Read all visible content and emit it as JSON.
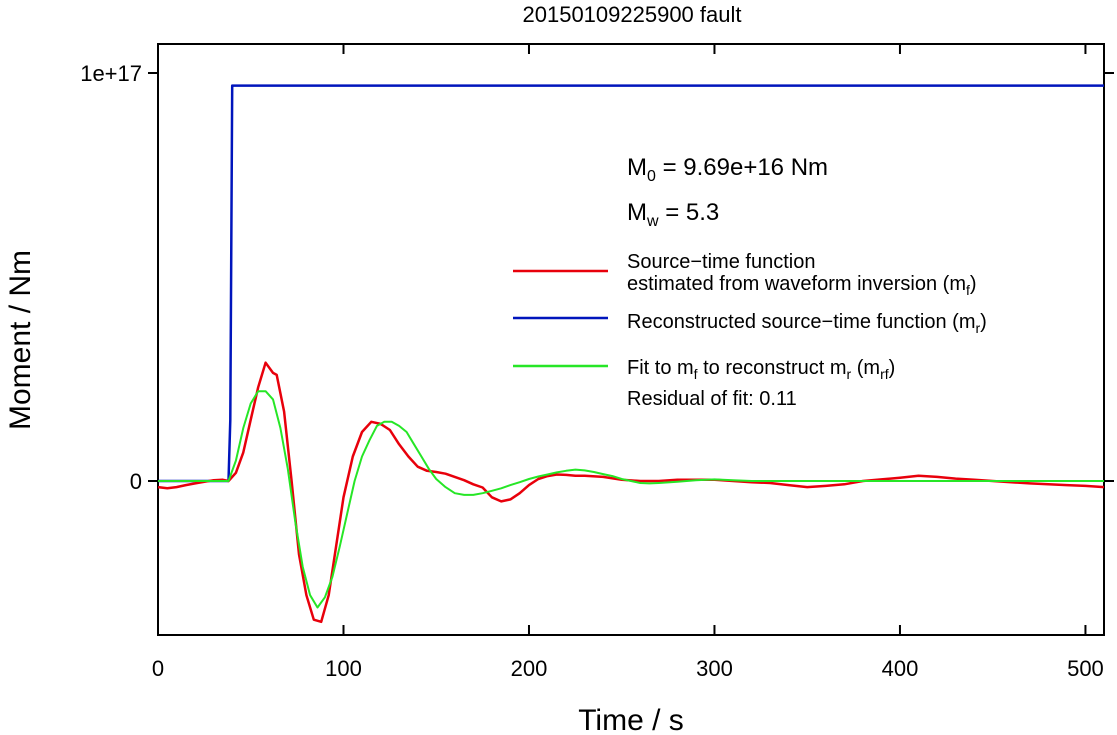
{
  "chart_data": {
    "type": "line",
    "title": "20150109225900 fault",
    "xlabel": "Time / s",
    "ylabel": "Moment / Nm",
    "xlim": [
      0,
      510
    ],
    "ylim": [
      -3.8e+16,
      1.14e+17
    ],
    "x_ticks": [
      {
        "value": 0,
        "label": "0"
      },
      {
        "value": 100,
        "label": "100"
      },
      {
        "value": 200,
        "label": "200"
      },
      {
        "value": 300,
        "label": "300"
      },
      {
        "value": 400,
        "label": "400"
      },
      {
        "value": 500,
        "label": "500"
      }
    ],
    "y_ticks": [
      {
        "value": 0,
        "label": "0"
      },
      {
        "value": 1e+17,
        "label": "1e+17"
      }
    ],
    "annotations": {
      "m0_sym": "M",
      "m0_sub": "0",
      "m0_text": " = 9.69e+16 Nm",
      "mw_sym": "M",
      "mw_sub": "w",
      "mw_text": " = 5.3",
      "residual": "Residual of fit: 0.11"
    },
    "legend": {
      "placement": "right",
      "entries": [
        {
          "color": "#e8000b",
          "lines": [
            [
              {
                "t": "Source−time function"
              }
            ],
            [
              {
                "t": "estimated from waveform inversion (m"
              },
              {
                "t": "f",
                "sub": true
              },
              {
                "t": ")"
              }
            ]
          ]
        },
        {
          "color": "#0015bc",
          "lines": [
            [
              {
                "t": "Reconstructed source−time function (m"
              },
              {
                "t": "r",
                "sub": true
              },
              {
                "t": ")"
              }
            ]
          ]
        },
        {
          "color": "#26e626",
          "lines": [
            [
              {
                "t": "Fit to m"
              },
              {
                "t": "f",
                "sub": true
              },
              {
                "t": " to reconstruct m"
              },
              {
                "t": "r",
                "sub": true
              },
              {
                "t": " (m"
              },
              {
                "t": "rf",
                "sub": true
              },
              {
                "t": ")"
              }
            ]
          ]
        }
      ]
    },
    "series": [
      {
        "color": "#0015bc",
        "x": [
          0,
          38,
          39,
          40,
          510
        ],
        "y": [
          0,
          0,
          1.5e+16,
          9.69e+16,
          9.69e+16
        ]
      },
      {
        "color": "#e8000b",
        "x": [
          0,
          5,
          10,
          15,
          20,
          25,
          30,
          35,
          38,
          42,
          46,
          50,
          54,
          58,
          62,
          64,
          68,
          72,
          76,
          80,
          84,
          88,
          92,
          96,
          100,
          105,
          110,
          115,
          120,
          125,
          130,
          135,
          140,
          145,
          150,
          155,
          160,
          165,
          170,
          175,
          180,
          185,
          190,
          195,
          200,
          205,
          210,
          215,
          220,
          225,
          230,
          240,
          250,
          260,
          270,
          280,
          290,
          300,
          310,
          320,
          330,
          340,
          350,
          360,
          370,
          380,
          390,
          400,
          410,
          420,
          430,
          440,
          450,
          460,
          470,
          480,
          490,
          500,
          510
        ],
        "y": [
          -1500000000000000.0,
          -1800000000000000.0,
          -1500000000000000.0,
          -1000000000000000.0,
          -600000000000000.0,
          -200000000000000.0,
          200000000000000.0,
          300000000000000.0,
          0,
          2000000000000000.0,
          7000000000000000.0,
          1.5e+16,
          2.3e+16,
          2.9e+16,
          2.65e+16,
          2.6e+16,
          1.7e+16,
          0,
          -1.8e+16,
          -2.8e+16,
          -3.4e+16,
          -3.45e+16,
          -2.8e+16,
          -1.6e+16,
          -4000000000000000.0,
          6000000000000000.0,
          1.2e+16,
          1.45e+16,
          1.4e+16,
          1.25e+16,
          9000000000000000.0,
          6000000000000000.0,
          3500000000000000.0,
          2500000000000000.0,
          2200000000000000.0,
          1800000000000000.0,
          1000000000000000.0,
          200000000000000.0,
          -800000000000000.0,
          -1600000000000000.0,
          -4000000000000000.0,
          -5000000000000000.0,
          -4500000000000000.0,
          -3000000000000000.0,
          -1000000000000000.0,
          500000000000000.0,
          1200000000000000.0,
          1600000000000000.0,
          1500000000000000.0,
          1300000000000000.0,
          1300000000000000.0,
          1000000000000000.0,
          300000000000000.0,
          0,
          0,
          300000000000000.0,
          300000000000000.0,
          300000000000000.0,
          0,
          -300000000000000.0,
          -500000000000000.0,
          -1000000000000000.0,
          -1500000000000000.0,
          -1200000000000000.0,
          -800000000000000.0,
          0,
          400000000000000.0,
          800000000000000.0,
          1300000000000000.0,
          1000000000000000.0,
          600000000000000.0,
          300000000000000.0,
          0,
          -300000000000000.0,
          -600000000000000.0,
          -800000000000000.0,
          -1000000000000000.0,
          -1200000000000000.0,
          -1500000000000000.0
        ]
      },
      {
        "color": "#26e626",
        "x": [
          0,
          38,
          42,
          46,
          50,
          54,
          58,
          62,
          66,
          70,
          74,
          78,
          82,
          86,
          90,
          94,
          98,
          102,
          106,
          110,
          114,
          118,
          122,
          126,
          130,
          134,
          138,
          142,
          146,
          150,
          155,
          160,
          165,
          170,
          175,
          180,
          185,
          190,
          195,
          200,
          205,
          210,
          215,
          220,
          225,
          230,
          235,
          240,
          245,
          250,
          255,
          260,
          265,
          270,
          280,
          290,
          300,
          310,
          320,
          340,
          360,
          400,
          450,
          510
        ],
        "y": [
          0,
          0,
          5000000000000000.0,
          1.3e+16,
          1.9e+16,
          2.2e+16,
          2.2e+16,
          2e+16,
          1.3e+16,
          3000000000000000.0,
          -1e+16,
          -2.1e+16,
          -2.8e+16,
          -3.1e+16,
          -2.85e+16,
          -2.35e+16,
          -1.6e+16,
          -8000000000000000.0,
          0,
          6000000000000000.0,
          1e+16,
          1.35e+16,
          1.45e+16,
          1.45e+16,
          1.35e+16,
          1.2e+16,
          9000000000000000.0,
          6000000000000000.0,
          3000000000000000.0,
          500000000000000.0,
          -1500000000000000.0,
          -3000000000000000.0,
          -3400000000000000.0,
          -3400000000000000.0,
          -3000000000000000.0,
          -2400000000000000.0,
          -1800000000000000.0,
          -1000000000000000.0,
          -300000000000000.0,
          500000000000000.0,
          1100000000000000.0,
          1600000000000000.0,
          2100000000000000.0,
          2500000000000000.0,
          2800000000000000.0,
          2600000000000000.0,
          2200000000000000.0,
          1700000000000000.0,
          1200000000000000.0,
          500000000000000.0,
          0,
          -500000000000000.0,
          -600000000000000.0,
          -500000000000000.0,
          -200000000000000.0,
          200000000000000.0,
          400000000000000.0,
          200000000000000.0,
          0,
          0,
          0,
          0,
          0,
          0
        ]
      }
    ]
  }
}
